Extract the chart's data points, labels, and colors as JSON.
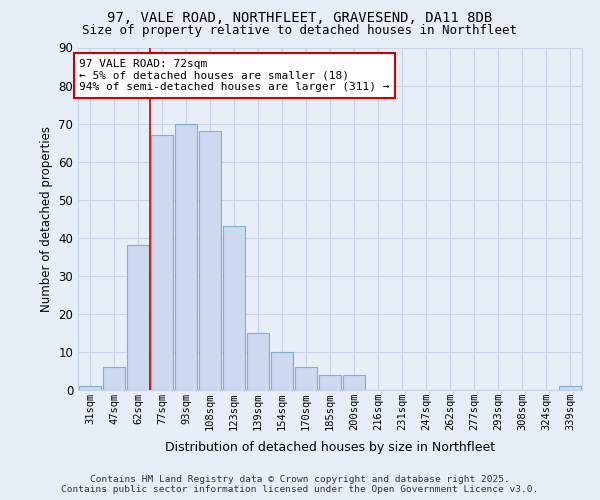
{
  "title_line1": "97, VALE ROAD, NORTHFLEET, GRAVESEND, DA11 8DB",
  "title_line2": "Size of property relative to detached houses in Northfleet",
  "xlabel": "Distribution of detached houses by size in Northfleet",
  "ylabel": "Number of detached properties",
  "bar_labels": [
    "31sqm",
    "47sqm",
    "62sqm",
    "77sqm",
    "93sqm",
    "108sqm",
    "123sqm",
    "139sqm",
    "154sqm",
    "170sqm",
    "185sqm",
    "200sqm",
    "216sqm",
    "231sqm",
    "247sqm",
    "262sqm",
    "277sqm",
    "293sqm",
    "308sqm",
    "324sqm",
    "339sqm"
  ],
  "bar_values": [
    1,
    6,
    38,
    67,
    70,
    68,
    43,
    15,
    10,
    6,
    4,
    4,
    0,
    0,
    0,
    0,
    0,
    0,
    0,
    0,
    1
  ],
  "bar_color": "#ccd9ef",
  "bar_edge_color": "#7bafd4",
  "grid_color": "#c8d4e8",
  "background_color": "#e8eef8",
  "annotation_text": "97 VALE ROAD: 72sqm\n← 5% of detached houses are smaller (18)\n94% of semi-detached houses are larger (311) →",
  "annotation_box_color": "#ffffff",
  "annotation_box_edge": "#cc0000",
  "vline_x": 2.5,
  "vline_color": "#cc0000",
  "ylim": [
    0,
    90
  ],
  "yticks": [
    0,
    10,
    20,
    30,
    40,
    50,
    60,
    70,
    80,
    90
  ],
  "footer_line1": "Contains HM Land Registry data © Crown copyright and database right 2025.",
  "footer_line2": "Contains public sector information licensed under the Open Government Licence v3.0."
}
